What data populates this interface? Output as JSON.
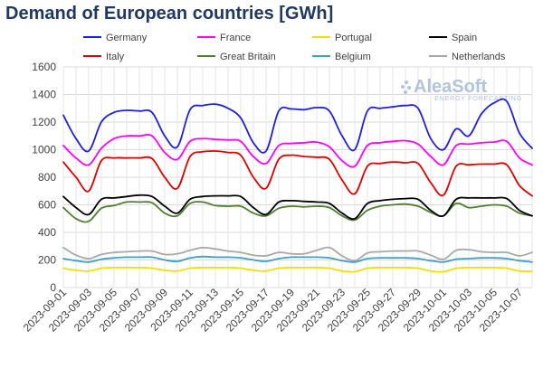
{
  "chart_data": {
    "type": "line",
    "title": "Demand of European countries [GWh]",
    "xlabel": "",
    "ylabel": "",
    "ylim": [
      0,
      1600
    ],
    "y_ticks": [
      0,
      200,
      400,
      600,
      800,
      1000,
      1200,
      1400,
      1600
    ],
    "grid": true,
    "legend_placement": "top",
    "watermark": {
      "brand": "AleaSoft",
      "tagline": "ENERGY FORECASTING"
    },
    "x_labels": [
      "2023-09-01",
      "2023-09-03",
      "2023-09-05",
      "2023-09-07",
      "2023-09-09",
      "2023-09-11",
      "2023-09-13",
      "2023-09-15",
      "2023-09-17",
      "2023-09-19",
      "2023-09-21",
      "2023-09-23",
      "2023-09-25",
      "2023-09-27",
      "2023-09-29",
      "2023-10-01",
      "2023-10-03",
      "2023-10-05",
      "2023-10-07"
    ],
    "x": [
      "2023-09-01",
      "2023-09-02",
      "2023-09-03",
      "2023-09-04",
      "2023-09-05",
      "2023-09-06",
      "2023-09-07",
      "2023-09-08",
      "2023-09-09",
      "2023-09-10",
      "2023-09-11",
      "2023-09-12",
      "2023-09-13",
      "2023-09-14",
      "2023-09-15",
      "2023-09-16",
      "2023-09-17",
      "2023-09-18",
      "2023-09-19",
      "2023-09-20",
      "2023-09-21",
      "2023-09-22",
      "2023-09-23",
      "2023-09-24",
      "2023-09-25",
      "2023-09-26",
      "2023-09-27",
      "2023-09-28",
      "2023-09-29",
      "2023-09-30",
      "2023-10-01",
      "2023-10-02",
      "2023-10-03",
      "2023-10-04",
      "2023-10-05",
      "2023-10-06",
      "2023-10-07",
      "2023-10-08"
    ],
    "series": [
      {
        "name": "Germany",
        "color": "#1f1fe0",
        "values": [
          1250,
          1080,
          990,
          1200,
          1270,
          1285,
          1280,
          1270,
          1100,
          1020,
          1290,
          1320,
          1330,
          1300,
          1230,
          1050,
          990,
          1280,
          1295,
          1290,
          1305,
          1280,
          1100,
          1000,
          1280,
          1300,
          1310,
          1320,
          1300,
          1080,
          1000,
          1150,
          1100,
          1260,
          1340,
          1350,
          1120,
          1010
        ]
      },
      {
        "name": "France",
        "color": "#ff00ff",
        "values": [
          1030,
          940,
          890,
          1010,
          1080,
          1100,
          1100,
          1100,
          980,
          930,
          1060,
          1080,
          1075,
          1070,
          1060,
          950,
          900,
          1030,
          1045,
          1050,
          1055,
          1020,
          920,
          880,
          1030,
          1050,
          1060,
          1065,
          1040,
          950,
          890,
          1030,
          1040,
          1050,
          1055,
          1060,
          940,
          890
        ]
      },
      {
        "name": "Portugal",
        "color": "#f0e000",
        "values": [
          140,
          125,
          120,
          140,
          145,
          145,
          145,
          140,
          125,
          120,
          140,
          145,
          145,
          145,
          140,
          125,
          120,
          140,
          145,
          145,
          145,
          140,
          120,
          115,
          140,
          145,
          145,
          145,
          140,
          120,
          115,
          140,
          145,
          145,
          145,
          140,
          120,
          118
        ]
      },
      {
        "name": "Spain",
        "color": "#000000",
        "values": [
          660,
          580,
          530,
          640,
          650,
          660,
          670,
          660,
          590,
          540,
          640,
          660,
          665,
          665,
          660,
          580,
          530,
          620,
          630,
          625,
          620,
          610,
          540,
          500,
          610,
          630,
          640,
          645,
          640,
          560,
          520,
          640,
          650,
          650,
          650,
          645,
          560,
          520
        ]
      },
      {
        "name": "Italy",
        "color": "#e00000",
        "values": [
          910,
          800,
          700,
          920,
          940,
          940,
          940,
          935,
          800,
          720,
          950,
          985,
          990,
          980,
          960,
          800,
          720,
          930,
          960,
          950,
          945,
          930,
          780,
          680,
          880,
          900,
          910,
          905,
          900,
          760,
          670,
          880,
          890,
          895,
          895,
          890,
          740,
          665
        ]
      },
      {
        "name": "Great Britain",
        "color": "#4f7f2f",
        "values": [
          580,
          500,
          480,
          575,
          595,
          620,
          620,
          615,
          540,
          520,
          610,
          620,
          595,
          590,
          590,
          540,
          520,
          575,
          590,
          585,
          590,
          580,
          520,
          490,
          560,
          590,
          600,
          605,
          590,
          545,
          520,
          610,
          580,
          590,
          600,
          590,
          540,
          520
        ]
      },
      {
        "name": "Belgium",
        "color": "#3fa0c8",
        "values": [
          210,
          195,
          185,
          205,
          215,
          220,
          220,
          220,
          200,
          190,
          215,
          225,
          220,
          220,
          215,
          200,
          190,
          210,
          220,
          220,
          220,
          215,
          195,
          185,
          210,
          215,
          215,
          215,
          210,
          195,
          185,
          205,
          210,
          215,
          215,
          210,
          195,
          185
        ]
      },
      {
        "name": "Netherlands",
        "color": "#a8a8a8",
        "values": [
          290,
          235,
          210,
          240,
          255,
          260,
          265,
          265,
          240,
          245,
          270,
          290,
          280,
          265,
          255,
          235,
          230,
          255,
          245,
          245,
          270,
          290,
          230,
          195,
          250,
          260,
          265,
          265,
          265,
          235,
          205,
          270,
          275,
          260,
          255,
          255,
          230,
          255
        ]
      }
    ]
  }
}
